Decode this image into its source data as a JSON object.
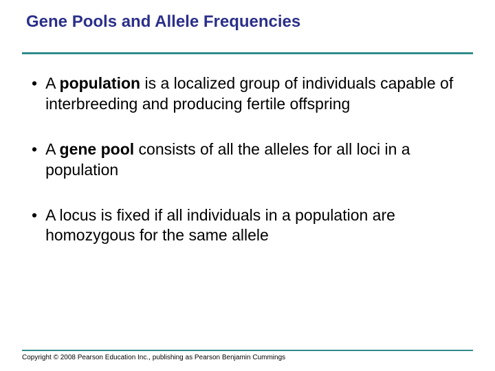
{
  "slide": {
    "title": "Gene Pools and Allele Frequencies",
    "title_color": "#2b2f8a",
    "title_fontsize": 24,
    "rule_color": "#2e8b8b",
    "background_color": "#ffffff",
    "body_fontsize": 23,
    "body_color": "#000000",
    "bullets": [
      {
        "prefix": "A ",
        "bold": "population",
        "rest": " is a localized group of individuals capable of interbreeding and producing fertile offspring"
      },
      {
        "prefix": "A ",
        "bold": "gene pool",
        "rest": " consists of all the alleles for all loci in a population"
      },
      {
        "prefix": "",
        "bold": "",
        "rest": "A locus is fixed if all individuals in a population are homozygous for the same allele"
      }
    ],
    "copyright": "Copyright © 2008 Pearson Education Inc., publishing as Pearson Benjamin Cummings"
  }
}
